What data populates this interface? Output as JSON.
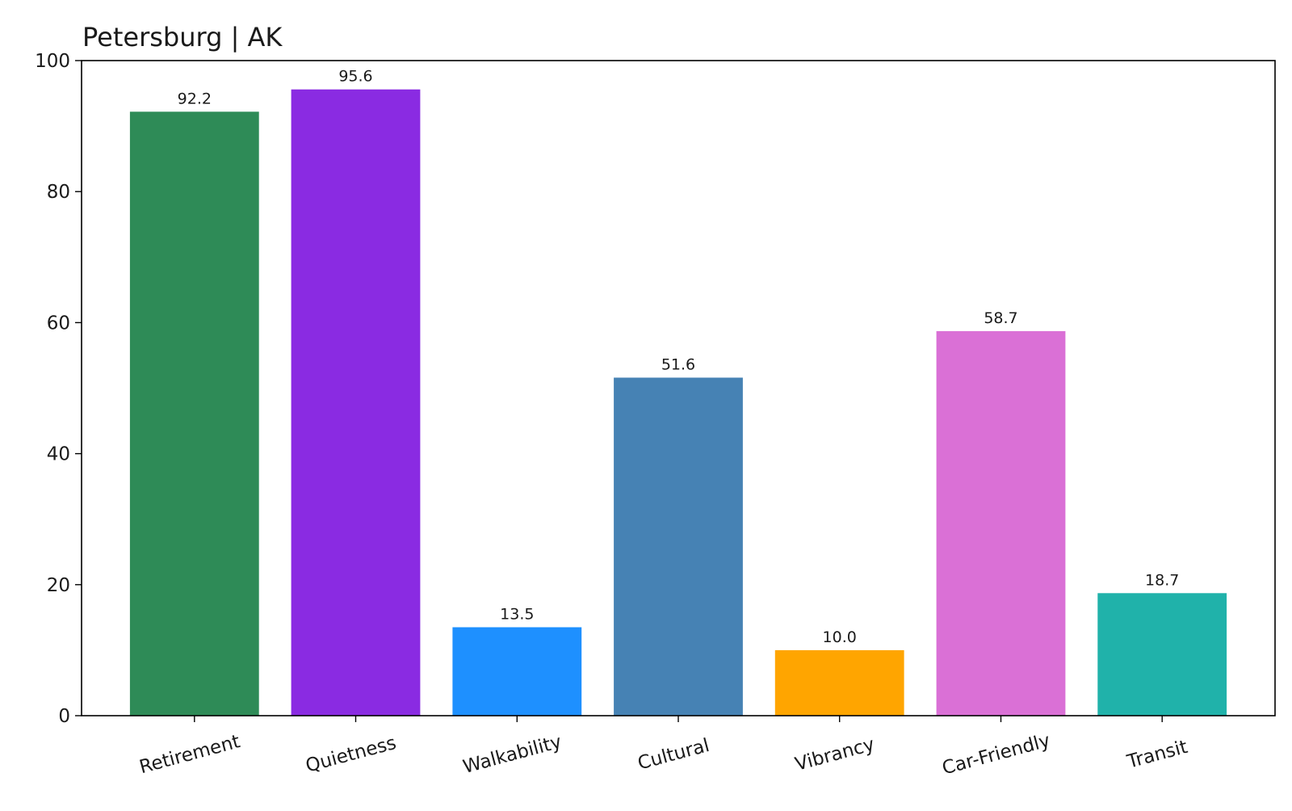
{
  "chart_data": {
    "type": "bar",
    "title": "Petersburg | AK",
    "xlabel": "",
    "ylabel": "",
    "categories": [
      "Retirement",
      "Quietness",
      "Walkability",
      "Cultural",
      "Vibrancy",
      "Car-Friendly",
      "Transit"
    ],
    "values": [
      92.2,
      95.6,
      13.5,
      51.6,
      10.0,
      58.7,
      18.7
    ],
    "value_labels": [
      "92.2",
      "95.6",
      "13.5",
      "51.6",
      "10.0",
      "58.7",
      "18.7"
    ],
    "colors": [
      "#2e8b57",
      "#8a2be2",
      "#1e90ff",
      "#4682b4",
      "#ffa500",
      "#da70d6",
      "#20b2aa"
    ],
    "ylim": [
      0,
      100
    ],
    "yticks": [
      0,
      20,
      40,
      60,
      80,
      100
    ],
    "ytick_labels": [
      "0",
      "20",
      "40",
      "60",
      "80",
      "100"
    ],
    "grid": false,
    "legend": "none"
  }
}
